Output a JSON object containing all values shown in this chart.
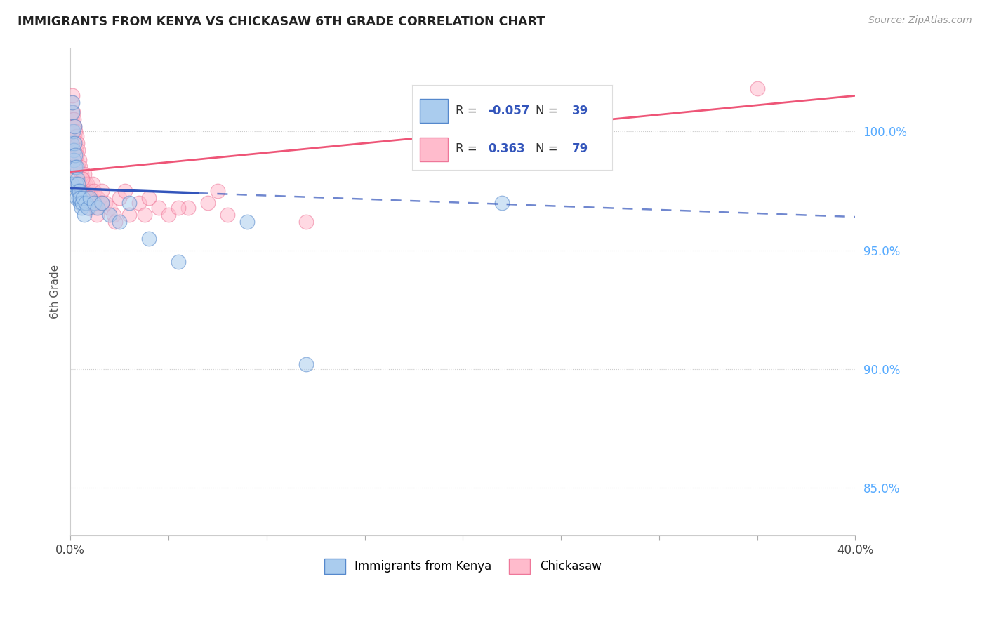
{
  "title": "IMMIGRANTS FROM KENYA VS CHICKASAW 6TH GRADE CORRELATION CHART",
  "source": "Source: ZipAtlas.com",
  "ylabel": "6th Grade",
  "xlim": [
    0.0,
    40.0
  ],
  "ylim": [
    83.0,
    103.5
  ],
  "legend_blue_r": "-0.057",
  "legend_blue_n": "39",
  "legend_pink_r": "0.363",
  "legend_pink_n": "79",
  "blue_face_color": "#AACCEE",
  "blue_edge_color": "#5588CC",
  "pink_face_color": "#FFBBCC",
  "pink_edge_color": "#EE7799",
  "blue_line_color": "#3355BB",
  "pink_line_color": "#EE5577",
  "right_tick_color": "#55AAFF",
  "ylabel_right_vals": [
    100.0,
    95.0,
    90.0,
    85.0
  ],
  "blue_scatter_x": [
    0.05,
    0.08,
    0.1,
    0.12,
    0.14,
    0.16,
    0.18,
    0.2,
    0.22,
    0.24,
    0.26,
    0.28,
    0.3,
    0.32,
    0.35,
    0.38,
    0.4,
    0.42,
    0.45,
    0.48,
    0.5,
    0.55,
    0.6,
    0.65,
    0.7,
    0.8,
    0.9,
    1.0,
    1.2,
    1.4,
    1.6,
    2.0,
    2.5,
    3.0,
    4.0,
    5.5,
    9.0,
    22.0,
    12.0
  ],
  "blue_scatter_y": [
    97.8,
    99.5,
    100.8,
    101.2,
    100.0,
    99.2,
    98.8,
    99.5,
    100.2,
    98.5,
    99.0,
    97.8,
    98.5,
    97.2,
    98.0,
    97.5,
    97.8,
    97.2,
    97.5,
    97.0,
    97.2,
    96.8,
    97.0,
    97.2,
    96.5,
    97.0,
    96.8,
    97.2,
    97.0,
    96.8,
    97.0,
    96.5,
    96.2,
    97.0,
    95.5,
    94.5,
    96.2,
    97.0,
    90.2
  ],
  "pink_scatter_x": [
    0.05,
    0.08,
    0.1,
    0.12,
    0.14,
    0.16,
    0.18,
    0.2,
    0.22,
    0.24,
    0.26,
    0.28,
    0.3,
    0.32,
    0.35,
    0.38,
    0.4,
    0.42,
    0.45,
    0.48,
    0.5,
    0.52,
    0.55,
    0.58,
    0.6,
    0.62,
    0.65,
    0.68,
    0.7,
    0.72,
    0.75,
    0.78,
    0.8,
    0.82,
    0.85,
    0.88,
    0.9,
    0.92,
    0.95,
    1.0,
    1.05,
    1.1,
    1.15,
    1.2,
    1.25,
    1.3,
    1.4,
    1.5,
    1.6,
    1.8,
    2.0,
    2.2,
    2.5,
    2.8,
    3.0,
    3.5,
    4.0,
    4.5,
    5.0,
    6.0,
    7.0,
    8.0,
    0.3,
    0.55,
    0.75,
    1.1,
    1.35,
    2.3,
    3.8,
    5.5,
    7.5,
    0.18,
    0.35,
    0.6,
    0.9,
    1.6,
    12.0,
    25.0,
    35.0
  ],
  "pink_scatter_y": [
    100.8,
    101.2,
    101.5,
    100.5,
    100.8,
    100.2,
    100.5,
    99.8,
    100.2,
    99.5,
    100.0,
    99.2,
    99.8,
    98.8,
    99.5,
    98.5,
    99.2,
    98.2,
    98.8,
    97.8,
    98.5,
    97.5,
    98.2,
    97.8,
    98.0,
    97.5,
    97.8,
    97.2,
    98.2,
    97.5,
    97.8,
    97.0,
    97.5,
    97.2,
    97.8,
    97.0,
    97.5,
    97.2,
    96.8,
    97.5,
    97.0,
    97.2,
    97.8,
    97.5,
    97.0,
    96.8,
    97.2,
    97.0,
    97.5,
    97.0,
    96.8,
    96.5,
    97.2,
    97.5,
    96.5,
    97.0,
    97.2,
    96.8,
    96.5,
    96.8,
    97.0,
    96.5,
    99.0,
    97.5,
    97.2,
    97.0,
    96.5,
    96.2,
    96.5,
    96.8,
    97.5,
    98.5,
    97.8,
    98.0,
    97.2,
    97.0,
    96.2,
    101.2,
    101.8
  ],
  "blue_trend_x0": 0.0,
  "blue_trend_x1": 40.0,
  "blue_trend_y0": 97.6,
  "blue_trend_y1": 96.4,
  "blue_solid_x1": 6.5,
  "pink_trend_x0": 0.0,
  "pink_trend_x1": 40.0,
  "pink_trend_y0": 98.3,
  "pink_trend_y1": 101.5
}
